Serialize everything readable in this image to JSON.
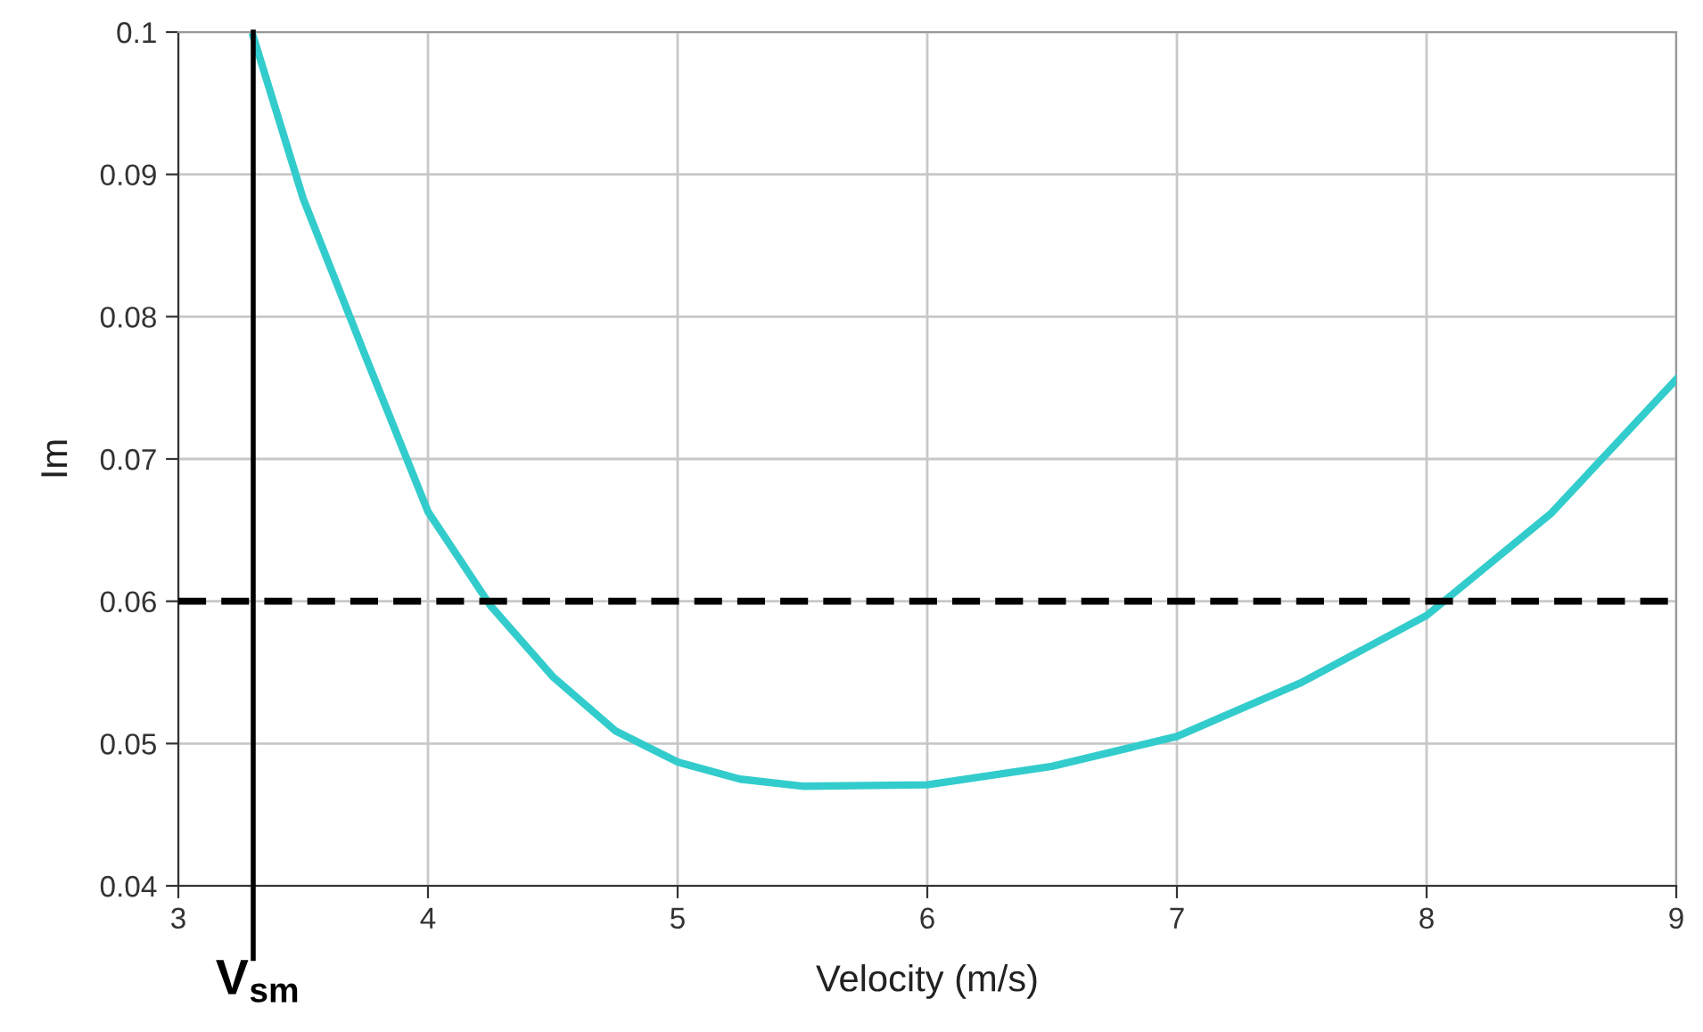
{
  "chart_data": {
    "type": "line",
    "xlabel": "Velocity (m/s)",
    "ylabel": "Im",
    "x": [
      3.3,
      3.5,
      3.75,
      4.0,
      4.25,
      4.5,
      4.75,
      5.0,
      5.25,
      5.5,
      6.0,
      6.5,
      7.0,
      7.5,
      8.0,
      8.5,
      9.0
    ],
    "series": [
      {
        "color": "#33cccc",
        "values": [
          0.0997,
          0.0883,
          0.0772,
          0.0663,
          0.0597,
          0.0547,
          0.0509,
          0.0487,
          0.0475,
          0.047,
          0.0471,
          0.0484,
          0.0505,
          0.0543,
          0.059,
          0.0662,
          0.0756
        ]
      }
    ],
    "xlim": [
      3,
      9
    ],
    "xticks": [
      3,
      4,
      5,
      6,
      7,
      8,
      9
    ],
    "ylim": [
      0.04,
      0.1
    ],
    "yticks": [
      0.04,
      0.05,
      0.06,
      0.07,
      0.08,
      0.09,
      0.1
    ],
    "grid": true,
    "marker": "none",
    "line_style": "solid",
    "ref_lines": [
      {
        "axis": "y",
        "value": 0.06,
        "color": "#000000",
        "line_style": "dashed"
      },
      {
        "axis": "x",
        "value": 3.3,
        "label": "V$_{sm}$",
        "color": "#000000",
        "line_style": "solid"
      }
    ]
  }
}
